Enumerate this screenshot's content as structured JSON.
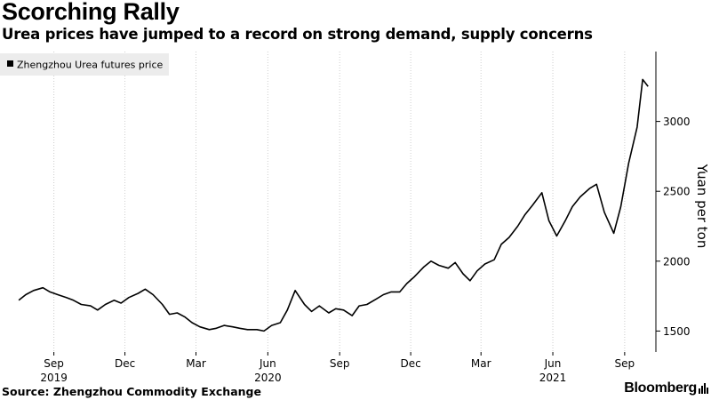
{
  "header": {
    "title": "Scorching Rally",
    "subtitle": "Urea prices have jumped to a record on strong demand, supply concerns"
  },
  "footer": {
    "source": "Source: Zhengzhou Commodity Exchange",
    "brand": "Bloomberg"
  },
  "colors": {
    "line": "#000000",
    "grid": "#cccccc",
    "legend_bg": "#ececec"
  },
  "chart_data": {
    "type": "line",
    "title": "Scorching Rally",
    "subtitle": "Urea prices have jumped to a record on strong demand, supply concerns",
    "ylabel": "Yuan per ton",
    "y_axis_side": "right",
    "ylim": [
      1350,
      3500
    ],
    "y_ticks": [
      1500,
      2000,
      2500,
      3000
    ],
    "y_tick_labels": [
      "1500",
      "2000",
      "2500",
      "3000"
    ],
    "grid": "vertical",
    "legend_position": "top-left",
    "x_ticks": [
      {
        "label": "Sep",
        "date": "2019-09"
      },
      {
        "label": "Dec",
        "date": "2019-12"
      },
      {
        "label": "Mar",
        "date": "2020-03"
      },
      {
        "label": "Jun",
        "date": "2020-06"
      },
      {
        "label": "Sep",
        "date": "2020-09"
      },
      {
        "label": "Dec",
        "date": "2020-12"
      },
      {
        "label": "Mar",
        "date": "2021-03"
      },
      {
        "label": "Jun",
        "date": "2021-06"
      },
      {
        "label": "Sep",
        "date": "2021-09"
      }
    ],
    "year_labels": [
      {
        "label": "2019",
        "date": "2019-09"
      },
      {
        "label": "2020",
        "date": "2020-06"
      },
      {
        "label": "2021",
        "date": "2021-06"
      }
    ],
    "series": [
      {
        "name": "Zhengzhou Urea futures price",
        "x": [
          "2019-08-01",
          "2019-08-10",
          "2019-08-20",
          "2019-09-01",
          "2019-09-10",
          "2019-09-20",
          "2019-10-01",
          "2019-10-10",
          "2019-10-20",
          "2019-11-01",
          "2019-11-10",
          "2019-11-20",
          "2019-12-01",
          "2019-12-10",
          "2019-12-20",
          "2020-01-01",
          "2020-01-10",
          "2020-01-20",
          "2020-02-01",
          "2020-02-10",
          "2020-02-20",
          "2020-03-01",
          "2020-03-10",
          "2020-03-20",
          "2020-04-01",
          "2020-04-10",
          "2020-04-20",
          "2020-05-01",
          "2020-05-10",
          "2020-05-20",
          "2020-06-01",
          "2020-06-10",
          "2020-06-20",
          "2020-07-01",
          "2020-07-10",
          "2020-07-20",
          "2020-08-01",
          "2020-08-10",
          "2020-08-20",
          "2020-09-01",
          "2020-09-10",
          "2020-09-20",
          "2020-10-01",
          "2020-10-10",
          "2020-10-20",
          "2020-11-01",
          "2020-11-10",
          "2020-11-20",
          "2020-12-01",
          "2020-12-10",
          "2020-12-20",
          "2021-01-01",
          "2021-01-10",
          "2021-01-20",
          "2021-02-01",
          "2021-02-10",
          "2021-02-20",
          "2021-03-01",
          "2021-03-10",
          "2021-03-20",
          "2021-04-01",
          "2021-04-10",
          "2021-04-20",
          "2021-05-01",
          "2021-05-10",
          "2021-05-20",
          "2021-06-01",
          "2021-06-10",
          "2021-06-20",
          "2021-07-01",
          "2021-07-10",
          "2021-07-20",
          "2021-08-01",
          "2021-08-10",
          "2021-08-20",
          "2021-09-01",
          "2021-09-10",
          "2021-09-20",
          "2021-10-01",
          "2021-10-08",
          "2021-10-15"
        ],
        "values": [
          1720,
          1760,
          1790,
          1810,
          1780,
          1760,
          1740,
          1720,
          1690,
          1680,
          1650,
          1690,
          1720,
          1700,
          1740,
          1770,
          1800,
          1760,
          1690,
          1620,
          1630,
          1600,
          1560,
          1530,
          1510,
          1520,
          1540,
          1530,
          1520,
          1510,
          1510,
          1500,
          1540,
          1560,
          1650,
          1790,
          1690,
          1640,
          1680,
          1630,
          1660,
          1650,
          1610,
          1680,
          1690,
          1730,
          1760,
          1780,
          1780,
          1840,
          1890,
          1960,
          2000,
          1970,
          1950,
          1990,
          1910,
          1860,
          1930,
          1980,
          2010,
          2120,
          2170,
          2250,
          2330,
          2400,
          2490,
          2290,
          2180,
          2290,
          2390,
          2460,
          2520,
          2550,
          2350,
          2200,
          2390,
          2700,
          2960,
          3300,
          3250
        ]
      }
    ]
  }
}
